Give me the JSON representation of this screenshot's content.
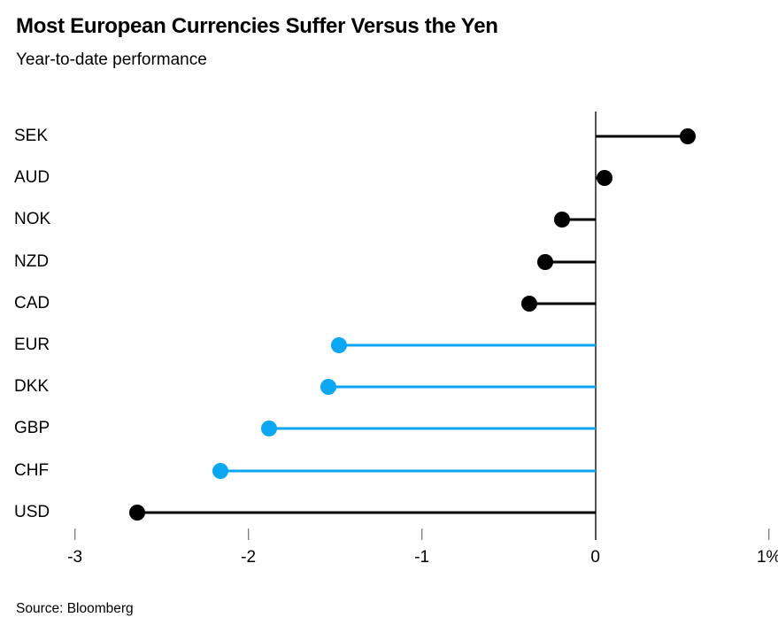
{
  "header": {
    "title": "Most European Currencies Suffer Versus the Yen",
    "subtitle": "Year-to-date performance"
  },
  "footer": {
    "source": "Source: Bloomberg"
  },
  "colors": {
    "highlight": "#0ba7f2",
    "default": "#000000",
    "axis": "#545454",
    "background": "#ffffff"
  },
  "chart_data": {
    "type": "bar",
    "subtype": "horizontal-lollipop",
    "title": "Most European Currencies Suffer Versus the Yen",
    "subtitle": "Year-to-date performance",
    "categories": [
      "SEK",
      "AUD",
      "NOK",
      "NZD",
      "CAD",
      "EUR",
      "DKK",
      "GBP",
      "CHF",
      "USD"
    ],
    "values": [
      0.53,
      0.05,
      -0.19,
      -0.29,
      -0.38,
      -1.48,
      -1.54,
      -1.88,
      -2.16,
      -2.64
    ],
    "series_colors": [
      "black",
      "black",
      "black",
      "black",
      "black",
      "blue",
      "blue",
      "blue",
      "blue",
      "black"
    ],
    "xlabel": "",
    "ylabel": "",
    "x_ticks": [
      "-3",
      "-2",
      "-1",
      "0",
      "1%"
    ],
    "x_tick_values": [
      -3,
      -2,
      -1,
      0,
      1
    ],
    "xlim": [
      -3.45,
      1.05
    ],
    "unit": "%",
    "grid": "none",
    "legend": "none",
    "source": "Source: Bloomberg"
  }
}
